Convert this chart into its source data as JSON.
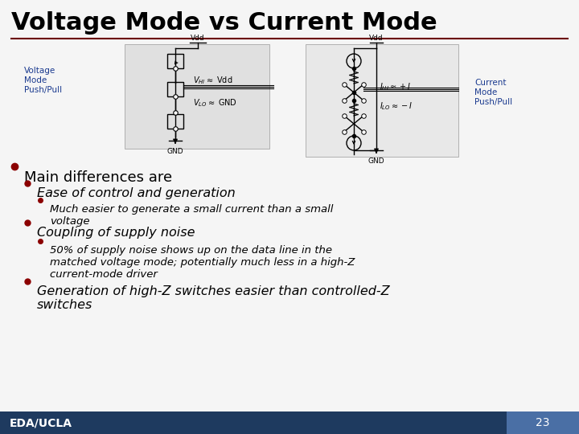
{
  "title": "Voltage Mode vs Current Mode",
  "title_fontsize": 22,
  "title_color": "#000000",
  "bg_color": "#f5f5f5",
  "underline_color": "#6b0000",
  "bullet1": "Main differences are",
  "bullet1_fontsize": 13,
  "bullet2a": "Ease of control and generation",
  "bullet2a_fontsize": 11.5,
  "bullet3a": "Much easier to generate a small current than a small\nvoltage",
  "bullet3a_fontsize": 9.5,
  "bullet2b": "Coupling of supply noise",
  "bullet2b_fontsize": 11.5,
  "bullet3b": "50% of supply noise shows up on the data line in the\nmatched voltage mode; potentially much less in a high-Z\ncurrent-mode driver",
  "bullet3b_fontsize": 9.5,
  "bullet2c": "Generation of high-Z switches easier than controlled-Z\nswitches",
  "bullet2c_fontsize": 11.5,
  "footer_text": "EDA/UCLA",
  "footer_bg": "#1e3a5f",
  "footer_fontsize": 10,
  "page_num": "23",
  "page_bg": "#4a6fa5",
  "text_color": "#000000",
  "bullet_color_1": "#8B0000",
  "bullet_color_2": "#8B0000",
  "label_color": "#1a3a8f",
  "diag_bg": "#e8e8e8"
}
